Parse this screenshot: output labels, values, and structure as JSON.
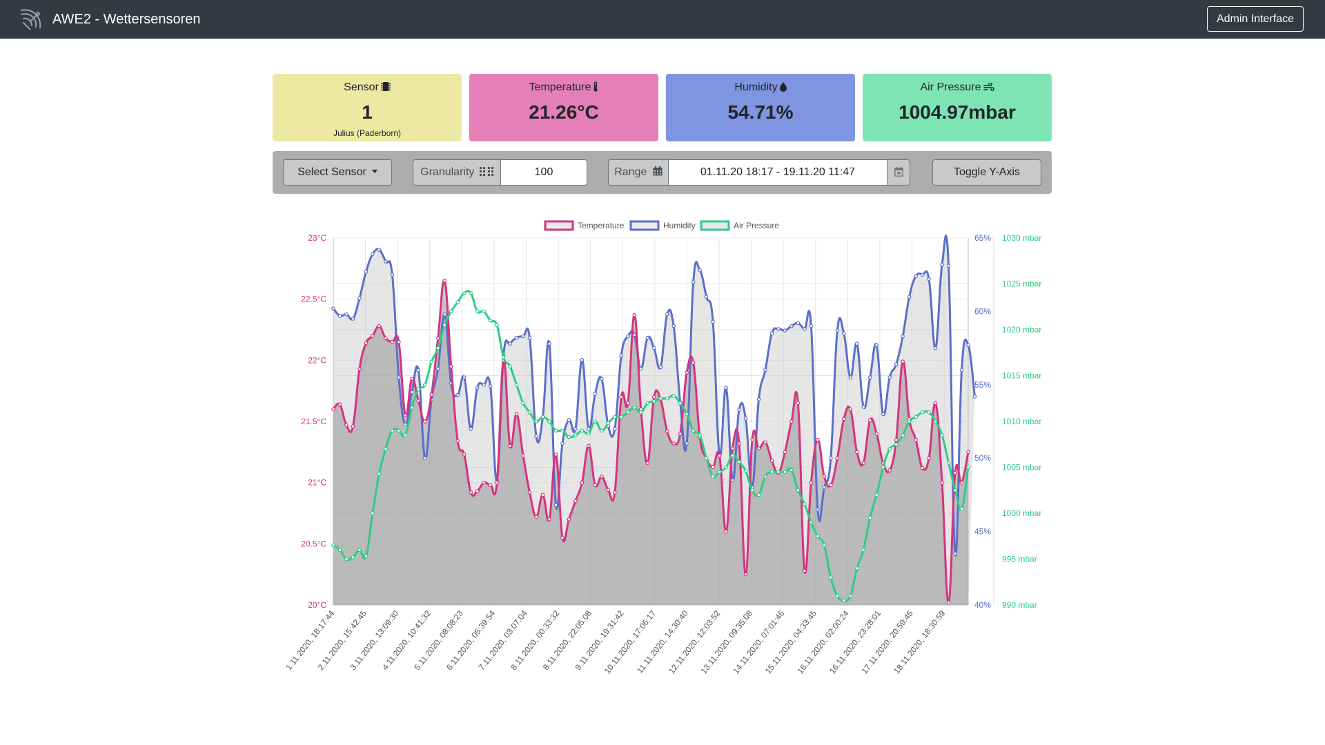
{
  "navbar": {
    "title": "AWE2 - Wettersensoren",
    "admin_label": "Admin Interface",
    "icon": "satellite-dish-icon"
  },
  "cards": {
    "sensor": {
      "label": "Sensor",
      "value": "1",
      "sub": "Julius (Paderborn)",
      "icon": "microchip-icon",
      "color": "#ede8a2"
    },
    "temperature": {
      "label": "Temperature",
      "value": "21.26°C",
      "icon": "thermometer-icon",
      "color": "#e47fb7"
    },
    "humidity": {
      "label": "Humidity",
      "value": "54.71%",
      "icon": "droplet-icon",
      "color": "#7f95e1"
    },
    "pressure": {
      "label": "Air Pressure",
      "value": "1004.97mbar",
      "icon": "wind-icon",
      "color": "#7fe4b3"
    }
  },
  "controls": {
    "select_sensor_label": "Select Sensor",
    "granularity_label": "Granularity",
    "granularity_value": "100",
    "range_label": "Range",
    "range_value": "01.11.20 18:17 - 19.11.20 11:47",
    "toggle_label": "Toggle Y-Axis"
  },
  "chart_data": {
    "type": "line",
    "legend": [
      "Temperature",
      "Humidity",
      "Air Pressure"
    ],
    "legend_position": "top",
    "grid": true,
    "x_tick_labels": [
      "1.11.2020, 18:17:44",
      "2.11.2020, 15:42:45",
      "3.11.2020, 13:09:30",
      "4.11.2020, 10:41:32",
      "5.11.2020, 08:08:23",
      "6.11.2020, 05:39:54",
      "7.11.2020, 03:07:04",
      "8.11.2020, 00:33:32",
      "8.11.2020, 22:05:08",
      "9.11.2020, 19:31:42",
      "10.11.2020, 17:06:17",
      "11.11.2020, 14:30:40",
      "12.11.2020, 12:03:52",
      "13.11.2020, 09:35:08",
      "14.11.2020, 07:01:46",
      "15.11.2020, 04:33:45",
      "16.11.2020, 02:00:24",
      "16.11.2020, 23:28:01",
      "17.11.2020, 20:59:45",
      "18.11.2020, 18:30:59"
    ],
    "axes": {
      "temperature": {
        "ticks": [
          "23°C",
          "22.5°C",
          "22°C",
          "21.5°C",
          "21°C",
          "20.5°C",
          "20°C"
        ],
        "range": [
          20,
          23
        ],
        "color": "#d6337f"
      },
      "humidity": {
        "ticks": [
          "65%",
          "60%",
          "55%",
          "50%",
          "45%",
          "40%"
        ],
        "range": [
          40,
          65
        ],
        "color": "#5b6fc9"
      },
      "pressure": {
        "ticks": [
          "1030 mbar",
          "1025 mbar",
          "1020 mbar",
          "1015 mbar",
          "1010 mbar",
          "1005 mbar",
          "1000 mbar",
          "995 mbar",
          "990 mbar"
        ],
        "range": [
          990,
          1030
        ],
        "color": "#2ecc84"
      }
    },
    "series": [
      {
        "name": "Temperature",
        "color": "#d6337f",
        "values": [
          21.6,
          21.64,
          21.47,
          21.46,
          21.93,
          22.14,
          22.2,
          22.28,
          22.18,
          22.15,
          22.15,
          21.55,
          21.85,
          21.67,
          21.5,
          21.72,
          22.18,
          22.65,
          21.95,
          21.34,
          21.23,
          20.92,
          20.93,
          21.0,
          20.98,
          21.0,
          22.0,
          21.3,
          21.56,
          21.22,
          20.92,
          20.72,
          20.9,
          20.7,
          21.23,
          20.55,
          20.7,
          20.85,
          21.0,
          21.3,
          20.98,
          21.05,
          20.94,
          20.92,
          21.7,
          21.65,
          22.37,
          21.6,
          21.16,
          21.7,
          21.68,
          21.42,
          21.32,
          21.4,
          21.9,
          21.98,
          21.37,
          21.2,
          21.13,
          21.22,
          20.6,
          21.28,
          21.32,
          20.25,
          21.35,
          21.28,
          21.33,
          21.18,
          21.08,
          21.25,
          21.5,
          21.65,
          20.28,
          21.0,
          21.35,
          21.05,
          20.98,
          21.2,
          21.52,
          21.6,
          21.25,
          21.16,
          21.51,
          21.4,
          21.16,
          21.1,
          21.35,
          21.99,
          21.52,
          21.35,
          21.12,
          21.2,
          21.65,
          21.0,
          20.02,
          21.08,
          21.0,
          21.25
        ]
      },
      {
        "name": "Humidity",
        "color": "#5b6fc9",
        "values": [
          60.2,
          59.7,
          59.8,
          59.5,
          60.9,
          62.7,
          63.9,
          64.2,
          63.4,
          62.5,
          55.5,
          52.3,
          54.5,
          56.0,
          50.0,
          54.0,
          56.1,
          59.8,
          55.1,
          54.3,
          55.5,
          52.0,
          54.8,
          55.0,
          54.9,
          48.5,
          57.0,
          57.8,
          58.2,
          58.3,
          58.2,
          51.5,
          52.8,
          57.8,
          46.8,
          51.0,
          52.6,
          52.0,
          56.7,
          52.0,
          54.4,
          55.4,
          52.2,
          52.0,
          57.0,
          58.3,
          58.4,
          56.1,
          58.2,
          57.5,
          56.2,
          59.8,
          59.0,
          53.8,
          51.0,
          62.0,
          62.8,
          61.0,
          59.3,
          50.2,
          54.8,
          48.5,
          53.3,
          52.7,
          48.0,
          54.0,
          56.0,
          58.5,
          58.8,
          58.7,
          59.0,
          59.2,
          58.8,
          59.0,
          46.5,
          48.0,
          50.0,
          58.7,
          58.5,
          55.5,
          57.8,
          53.5,
          55.5,
          57.7,
          53.0,
          55.5,
          56.4,
          58.3,
          61.0,
          62.4,
          62.5,
          62.2,
          57.5,
          63.2,
          63.1,
          43.5,
          56.0,
          57.7,
          54.2
        ]
      },
      {
        "name": "Air Pressure",
        "color": "#2ecc84",
        "values": [
          996.5,
          996.0,
          995.0,
          995.2,
          996.0,
          995.3,
          1000.0,
          1004.3,
          1007.0,
          1009.0,
          1009.0,
          1008.5,
          1011.5,
          1013.5,
          1014.0,
          1016.5,
          1018.0,
          1020.5,
          1022.0,
          1023.0,
          1024.0,
          1024.0,
          1022.0,
          1022.0,
          1021.0,
          1020.5,
          1017.0,
          1016.0,
          1014.0,
          1012.0,
          1011.0,
          1010.0,
          1010.5,
          1010.0,
          1009.0,
          1009.0,
          1008.3,
          1008.5,
          1009.0,
          1008.7,
          1010.0,
          1009.0,
          1009.8,
          1010.5,
          1010.5,
          1011.0,
          1011.5,
          1011.0,
          1012.0,
          1012.2,
          1012.5,
          1012.5,
          1012.8,
          1012.0,
          1010.8,
          1009.0,
          1008.5,
          1006.0,
          1004.0,
          1004.5,
          1005.0,
          1006.3,
          1005.6,
          1004.6,
          1002.5,
          1002.0,
          1004.0,
          1004.5,
          1004.5,
          1004.5,
          1004.7,
          1002.5,
          1001.0,
          999.0,
          997.5,
          996.5,
          993.0,
          991.0,
          990.5,
          991.0,
          994.0,
          996.0,
          999.5,
          1002.0,
          1005.0,
          1007.0,
          1007.5,
          1008.5,
          1010.0,
          1010.5,
          1011.0,
          1011.0,
          1010.0,
          1008.5,
          1005.5,
          1002.5,
          1000.5,
          1005.0
        ]
      }
    ]
  }
}
